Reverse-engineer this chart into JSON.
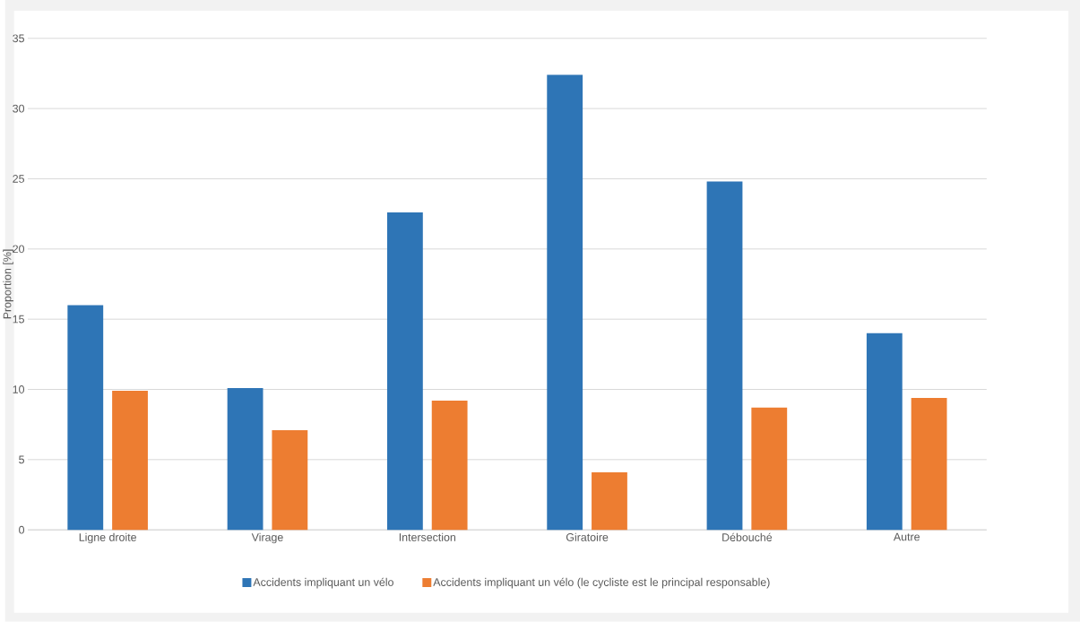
{
  "chart_data": {
    "type": "bar",
    "ylabel": "Proportion [%]",
    "categories": [
      "Ligne droite",
      "Virage",
      "Intersection",
      "Giratoire",
      "Débouché",
      "Autre"
    ],
    "series": [
      {
        "name": "Accidents impliquant un vélo",
        "color": "#2e75b6",
        "values": [
          16.0,
          10.1,
          22.6,
          32.4,
          24.8,
          14.0
        ]
      },
      {
        "name": "Accidents impliquant un vélo (le cycliste est le principal responsable)",
        "color": "#ed7d31",
        "values": [
          9.9,
          7.1,
          9.2,
          4.1,
          8.7,
          9.4
        ]
      }
    ],
    "ylim": [
      0,
      35
    ],
    "yticks": [
      0,
      5,
      10,
      15,
      20,
      25,
      30,
      35
    ],
    "grid": "y",
    "legend": "bottom"
  }
}
